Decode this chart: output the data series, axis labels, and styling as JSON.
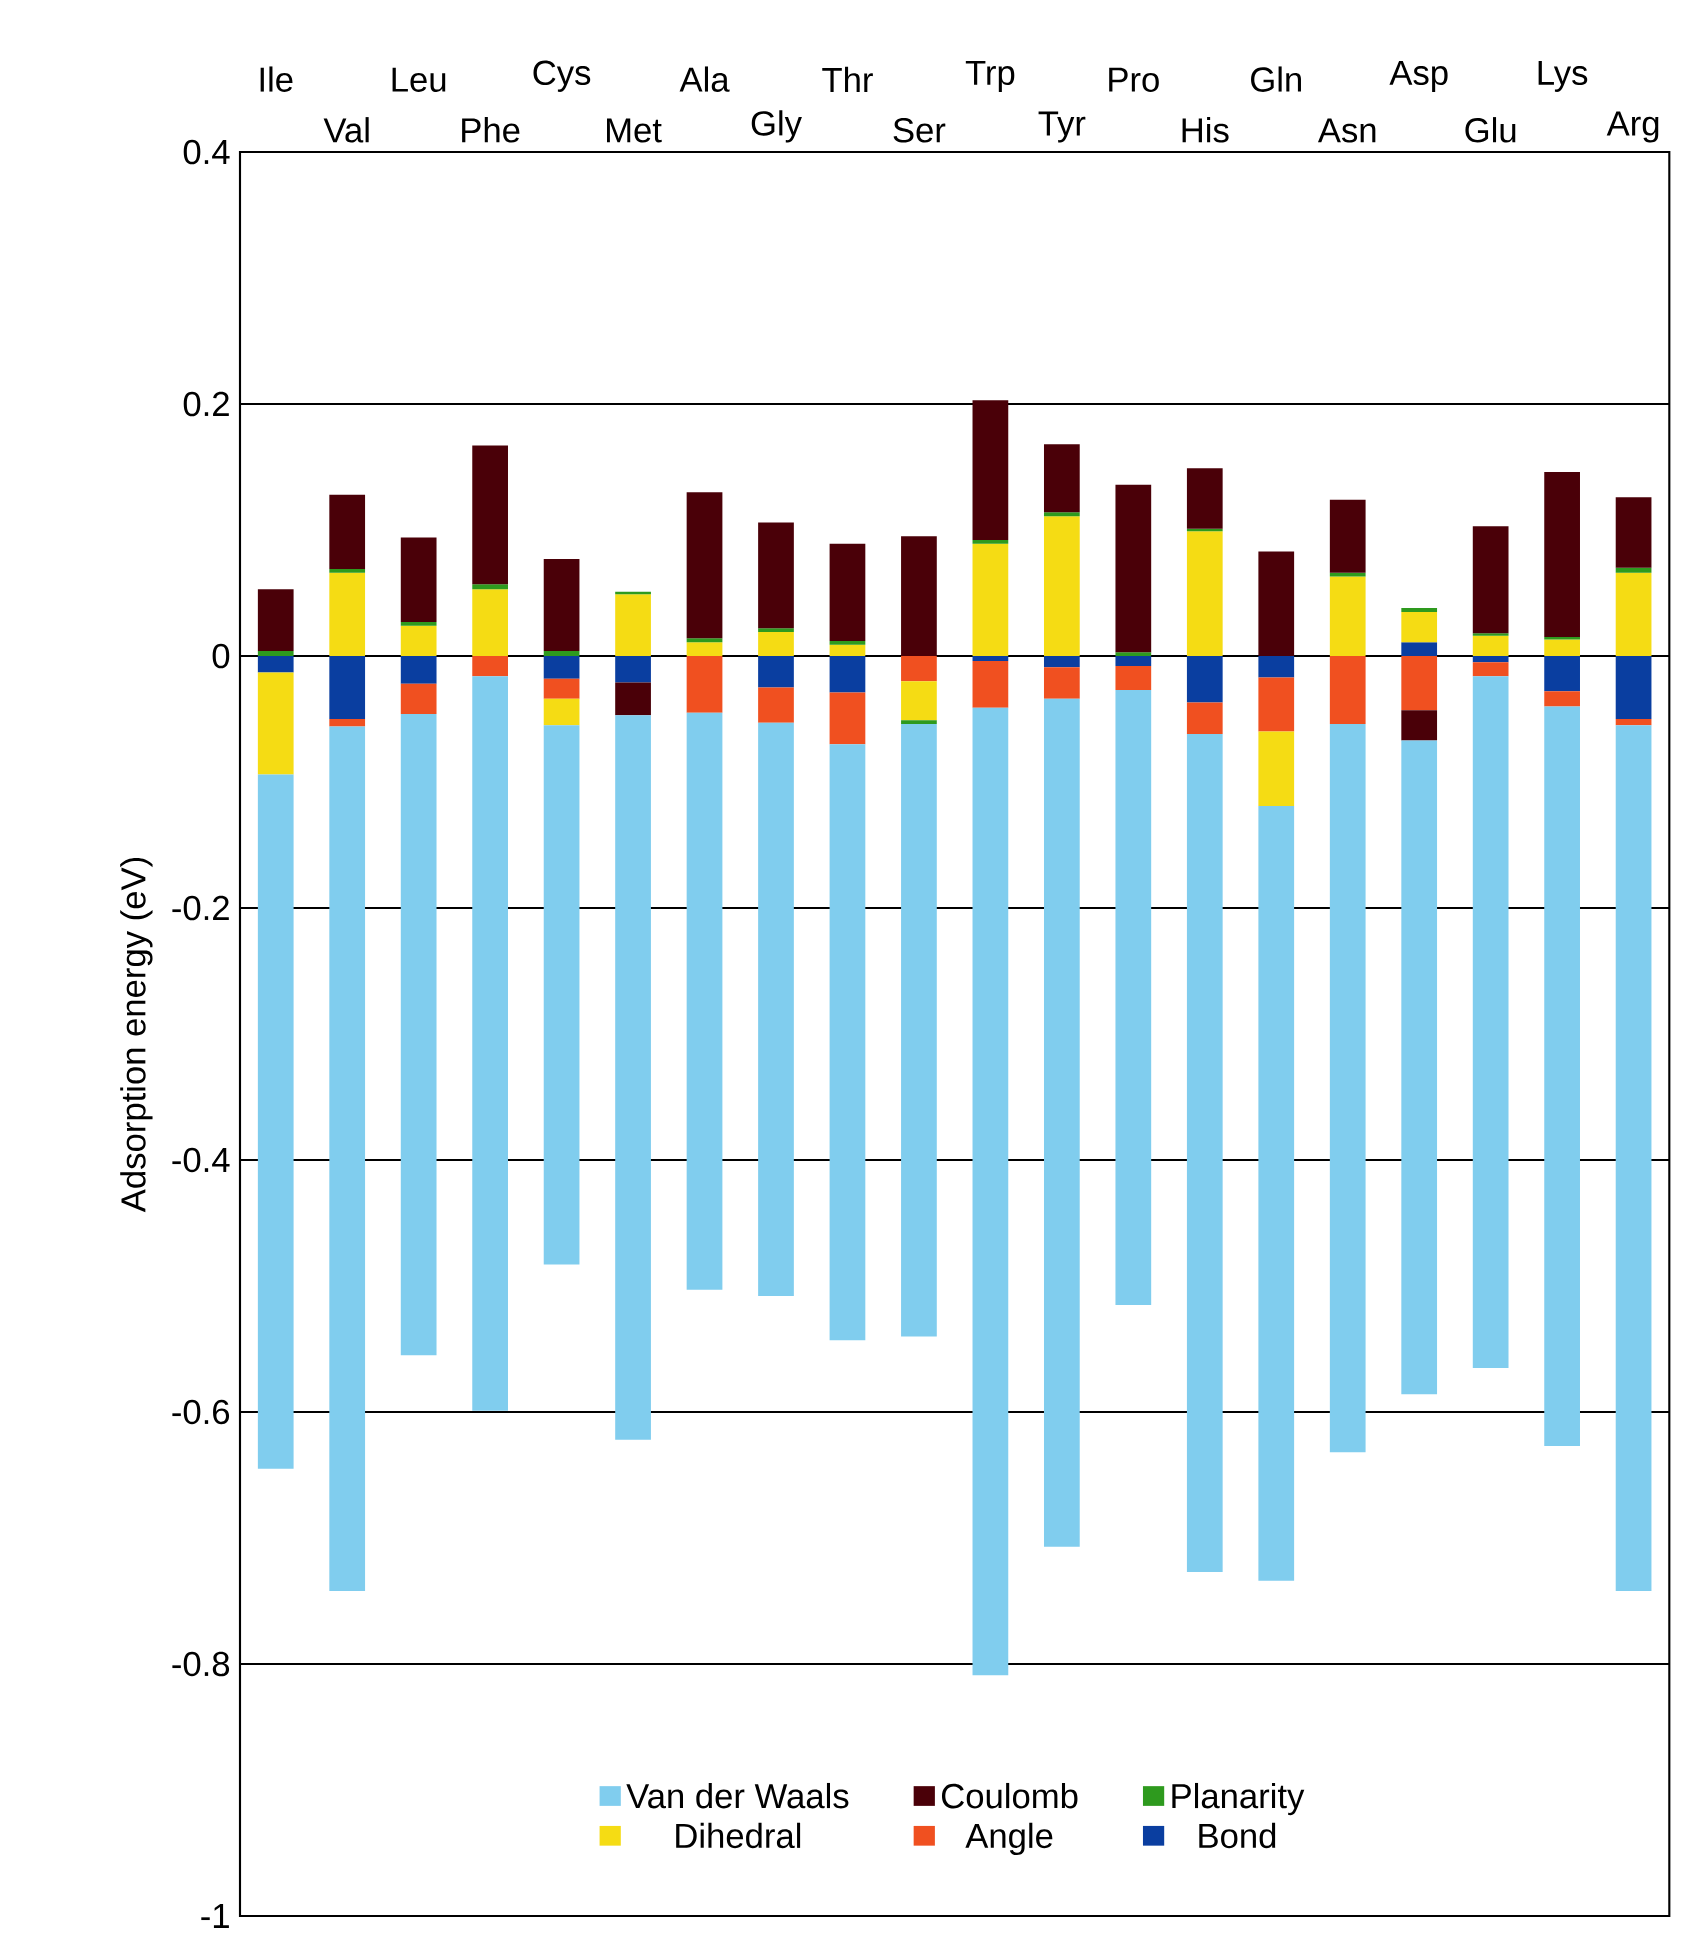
{
  "chart_data": {
    "type": "bar",
    "stacked": true,
    "ylabel": "Adsorption energy  (eV)",
    "categories": [
      "Ile",
      "Val",
      "Leu",
      "Phe",
      "Cys",
      "Met",
      "Ala",
      "Gly",
      "Thr",
      "Ser",
      "Trp",
      "Tyr",
      "Pro",
      "His",
      "Gln",
      "Asn",
      "Asp",
      "Glu",
      "Lys",
      "Arg"
    ],
    "series": [
      {
        "name": "Bond",
        "color": "#0a3ea0",
        "values": [
          -0.013,
          -0.05,
          -0.022,
          0,
          -0.018,
          -0.021,
          0,
          -0.025,
          -0.029,
          0,
          -0.004,
          -0.009,
          -0.008,
          -0.037,
          -0.017,
          0,
          0.011,
          -0.005,
          -0.028,
          -0.05
        ]
      },
      {
        "name": "Angle",
        "color": "#f05020",
        "values": [
          0,
          -0.006,
          -0.024,
          -0.016,
          -0.016,
          0,
          -0.045,
          -0.028,
          -0.041,
          -0.02,
          -0.037,
          -0.025,
          -0.019,
          -0.025,
          -0.043,
          -0.054,
          -0.043,
          -0.011,
          -0.012,
          -0.005
        ]
      },
      {
        "name": "Dihedral",
        "color": "#f5dc14",
        "values": [
          -0.081,
          0.066,
          0.024,
          0.053,
          -0.021,
          0.049,
          0.011,
          0.019,
          0.009,
          -0.031,
          0.089,
          0.111,
          0,
          0.099,
          -0.059,
          0.063,
          0.024,
          0.016,
          0.013,
          0.066
        ]
      },
      {
        "name": "Planarity",
        "color": "#2e9a1e",
        "values": [
          0.004,
          0.003,
          0.003,
          0.004,
          0.004,
          0.002,
          0.003,
          0.003,
          0.003,
          -0.003,
          0.003,
          0.003,
          0.003,
          0.002,
          0,
          0.003,
          0.003,
          0.002,
          0.002,
          0.004
        ]
      },
      {
        "name": "Coulomb",
        "color": "#4a0008",
        "values": [
          0.049,
          0.059,
          0.067,
          0.11,
          0.073,
          -0.026,
          0.116,
          0.084,
          0.077,
          0.095,
          0.111,
          0.054,
          0.133,
          0.048,
          0.083,
          0.058,
          -0.024,
          0.085,
          0.131,
          0.056
        ]
      },
      {
        "name": "Van der Waals",
        "color": "#80cdee",
        "values": [
          -0.551,
          -0.686,
          -0.509,
          -0.583,
          -0.428,
          -0.575,
          -0.458,
          -0.455,
          -0.473,
          -0.486,
          -0.768,
          -0.673,
          -0.488,
          -0.665,
          -0.615,
          -0.578,
          -0.519,
          -0.549,
          -0.587,
          -0.687
        ]
      }
    ],
    "ylim": [
      -1,
      0.4
    ],
    "yticks": [
      -1,
      -0.8,
      -0.6,
      -0.4,
      -0.2,
      0,
      0.2,
      0.4
    ],
    "grid": "y",
    "legend": "bottom"
  }
}
